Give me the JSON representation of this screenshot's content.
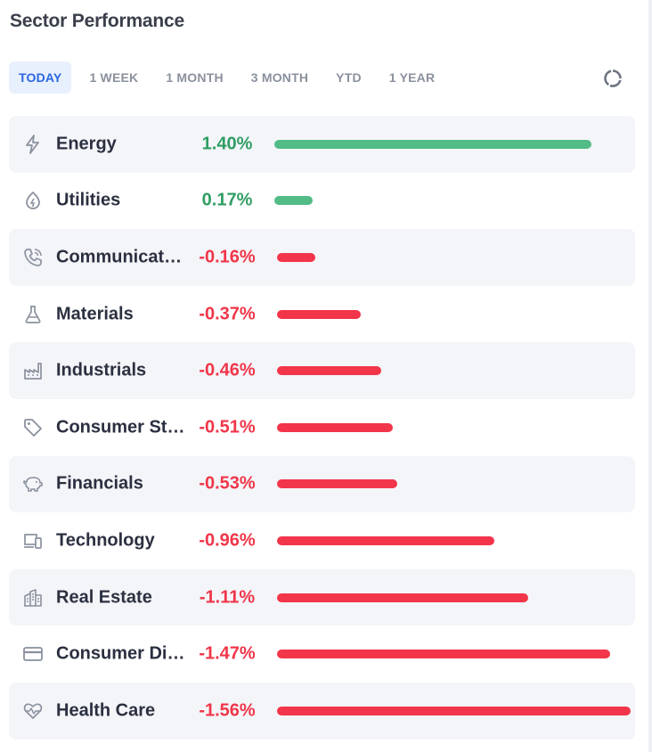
{
  "widget": {
    "title": "Sector Performance"
  },
  "tabs": [
    {
      "label": "TODAY",
      "active": true
    },
    {
      "label": "1 WEEK",
      "active": false
    },
    {
      "label": "1 MONTH",
      "active": false
    },
    {
      "label": "3 MONTH",
      "active": false
    },
    {
      "label": "YTD",
      "active": false
    },
    {
      "label": "1 YEAR",
      "active": false
    }
  ],
  "view_toggle": {
    "selected": "bar-chart",
    "icons": [
      "bar-chart-icon",
      "donut-chart-icon"
    ]
  },
  "colors": {
    "positive": "#52bb86",
    "negative": "#f2354a",
    "positive_text": "#2f9d63",
    "negative_text": "#f03649",
    "accent": "#2a66e0"
  },
  "sectors": [
    {
      "name": "Energy",
      "change": "1.40%",
      "value": 1.4,
      "icon": "bolt-icon"
    },
    {
      "name": "Utilities",
      "change": "0.17%",
      "value": 0.17,
      "icon": "flame-icon"
    },
    {
      "name": "Communicat…",
      "change": "-0.16%",
      "value": -0.16,
      "icon": "phone-icon"
    },
    {
      "name": "Materials",
      "change": "-0.37%",
      "value": -0.37,
      "icon": "flask-icon"
    },
    {
      "name": "Industrials",
      "change": "-0.46%",
      "value": -0.46,
      "icon": "factory-icon"
    },
    {
      "name": "Consumer St…",
      "change": "-0.51%",
      "value": -0.51,
      "icon": "tag-icon"
    },
    {
      "name": "Financials",
      "change": "-0.53%",
      "value": -0.53,
      "icon": "piggy-bank-icon"
    },
    {
      "name": "Technology",
      "change": "-0.96%",
      "value": -0.96,
      "icon": "devices-icon"
    },
    {
      "name": "Real Estate",
      "change": "-1.11%",
      "value": -1.11,
      "icon": "buildings-icon"
    },
    {
      "name": "Consumer Di…",
      "change": "-1.47%",
      "value": -1.47,
      "icon": "credit-card-icon"
    },
    {
      "name": "Health Care",
      "change": "-1.56%",
      "value": -1.56,
      "icon": "heart-pulse-icon"
    }
  ]
}
